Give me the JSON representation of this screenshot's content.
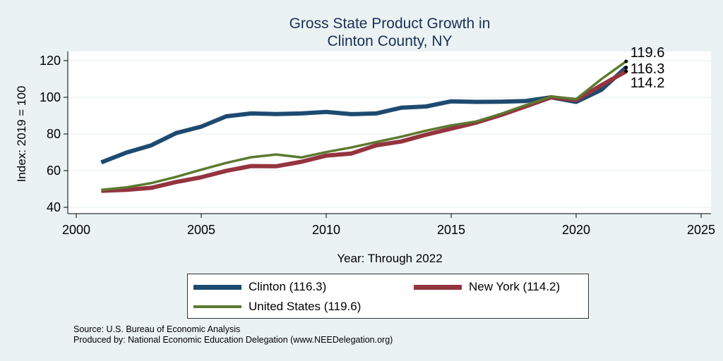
{
  "colors": {
    "clinton": "#1d4a70",
    "new_york": "#94343f",
    "united_states": "#5b7a30",
    "background": "#eaf2f3"
  },
  "chart_data": {
    "type": "line",
    "title": [
      "Gross State Product Growth in",
      "Clinton County, NY"
    ],
    "xlabel": "Year: Through 2022",
    "ylabel": "Index: 2019 = 100",
    "xlim": [
      2000,
      2025
    ],
    "ylim": [
      37,
      122
    ],
    "xticks": [
      "2000",
      "2005",
      "2010",
      "2015",
      "2020",
      "2025"
    ],
    "yticks": [
      "40",
      "60",
      "80",
      "100",
      "120"
    ],
    "grid": true,
    "legend_position": "bottom",
    "series": [
      {
        "key": "clinton",
        "name": "Clinton  (116.3)",
        "end_label": "116.3",
        "x": [
          2001,
          2002,
          2003,
          2004,
          2005,
          2006,
          2007,
          2008,
          2009,
          2010,
          2011,
          2012,
          2013,
          2014,
          2015,
          2016,
          2017,
          2018,
          2019,
          2020,
          2021,
          2022
        ],
        "values": [
          64.5,
          69.8,
          73.8,
          80.5,
          84.0,
          89.6,
          91.2,
          90.9,
          91.2,
          92.0,
          90.8,
          91.2,
          94.3,
          95.0,
          97.8,
          97.5,
          97.6,
          98.0,
          100.0,
          97.5,
          104.0,
          116.3
        ]
      },
      {
        "key": "new_york",
        "name": "New York (114.2)",
        "end_label": "114.2",
        "x": [
          2001,
          2002,
          2003,
          2004,
          2005,
          2006,
          2007,
          2008,
          2009,
          2010,
          2011,
          2012,
          2013,
          2014,
          2015,
          2016,
          2017,
          2018,
          2019,
          2020,
          2021,
          2022
        ],
        "values": [
          49.0,
          49.5,
          50.6,
          53.8,
          56.4,
          59.9,
          62.5,
          62.4,
          64.8,
          68.2,
          69.3,
          73.8,
          75.9,
          79.6,
          82.9,
          86.2,
          90.4,
          95.1,
          100.0,
          98.5,
          106.5,
          114.2
        ]
      },
      {
        "key": "united_states",
        "name": "United States (119.6)",
        "end_label": "119.6",
        "x": [
          2001,
          2002,
          2003,
          2004,
          2005,
          2006,
          2007,
          2008,
          2009,
          2010,
          2011,
          2012,
          2013,
          2014,
          2015,
          2016,
          2017,
          2018,
          2019,
          2020,
          2021,
          2022
        ],
        "values": [
          49.5,
          50.9,
          53.2,
          56.6,
          60.5,
          64.2,
          67.3,
          68.8,
          67.2,
          70.1,
          72.6,
          75.6,
          78.5,
          81.8,
          84.7,
          86.8,
          91.0,
          95.8,
          100.4,
          99.0,
          109.8,
          119.6
        ]
      }
    ]
  },
  "footer": {
    "source": "Source: U.S. Bureau of Economic Analysis",
    "produced_by": "Produced by: National Economic Education Delegation (www.NEEDelegation.org)"
  }
}
